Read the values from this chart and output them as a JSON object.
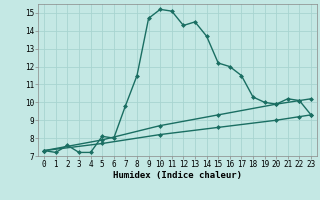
{
  "xlabel": "Humidex (Indice chaleur)",
  "bg_color": "#c4e8e4",
  "grid_color": "#a8d4d0",
  "line_color": "#1a6e62",
  "xlim": [
    -0.5,
    23.5
  ],
  "ylim": [
    7,
    15.5
  ],
  "xticks": [
    0,
    1,
    2,
    3,
    4,
    5,
    6,
    7,
    8,
    9,
    10,
    11,
    12,
    13,
    14,
    15,
    16,
    17,
    18,
    19,
    20,
    21,
    22,
    23
  ],
  "yticks": [
    7,
    8,
    9,
    10,
    11,
    12,
    13,
    14,
    15
  ],
  "series1_x": [
    0,
    1,
    2,
    3,
    4,
    5,
    6,
    7,
    8,
    9,
    10,
    11,
    12,
    13,
    14,
    15,
    16,
    17,
    18,
    19,
    20,
    21,
    22,
    23
  ],
  "series1_y": [
    7.3,
    7.2,
    7.6,
    7.2,
    7.2,
    8.1,
    8.0,
    9.8,
    11.5,
    14.7,
    15.2,
    15.1,
    14.3,
    14.5,
    13.7,
    12.2,
    12.0,
    11.5,
    10.3,
    10.0,
    9.9,
    10.2,
    10.1,
    9.3
  ],
  "series2_x": [
    0,
    5,
    10,
    15,
    20,
    22,
    23
  ],
  "series2_y": [
    7.3,
    7.9,
    8.7,
    9.3,
    9.9,
    10.1,
    10.2
  ],
  "series3_x": [
    0,
    5,
    10,
    15,
    20,
    22,
    23
  ],
  "series3_y": [
    7.3,
    7.7,
    8.2,
    8.6,
    9.0,
    9.2,
    9.3
  ],
  "markersize": 2.5,
  "linewidth": 1.0,
  "tick_fontsize": 5.5,
  "xlabel_fontsize": 6.5
}
